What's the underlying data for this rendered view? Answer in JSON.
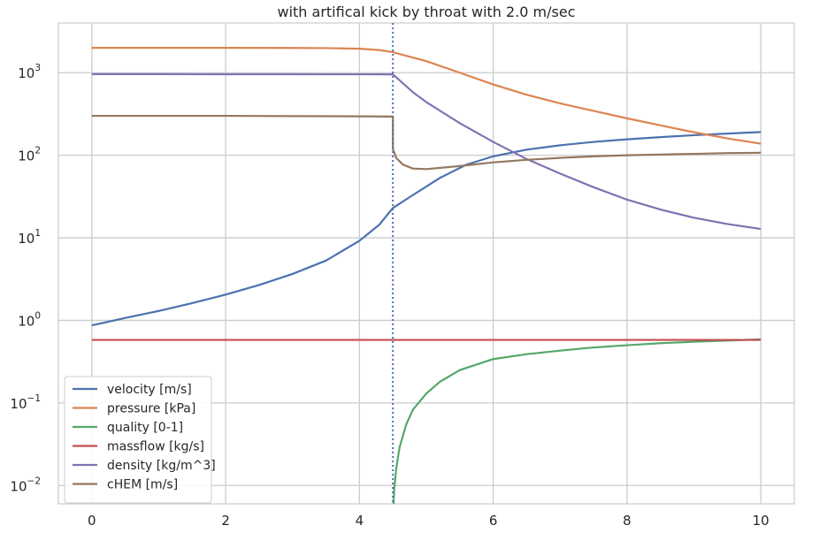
{
  "chart_data": {
    "type": "line",
    "title": "with artifical kick by throat with 2.0 m/sec",
    "xlabel": "",
    "ylabel": "",
    "xlim": [
      -0.5,
      10.5
    ],
    "ylim": [
      0.006,
      4000
    ],
    "yscale": "log",
    "grid": true,
    "legend_position": "lower-left",
    "x_ticks": [
      0,
      2,
      4,
      6,
      8,
      10
    ],
    "x_tick_labels": [
      "0",
      "2",
      "4",
      "6",
      "8",
      "10"
    ],
    "y_ticks": [
      0.01,
      0.1,
      1,
      10,
      100,
      1000
    ],
    "y_tick_labels": [
      {
        "base": "10",
        "exp": "−2"
      },
      {
        "base": "10",
        "exp": "−1"
      },
      {
        "base": "10",
        "exp": "0"
      },
      {
        "base": "10",
        "exp": "1"
      },
      {
        "base": "10",
        "exp": "2"
      },
      {
        "base": "10",
        "exp": "3"
      }
    ],
    "vline": {
      "x": 4.5,
      "color": "#4c72b0",
      "style": "dotted"
    },
    "series": [
      {
        "name": "velocity [m/s]",
        "color": "#4c72b0",
        "points": [
          [
            0,
            0.87
          ],
          [
            0.5,
            1.07
          ],
          [
            1,
            1.3
          ],
          [
            1.5,
            1.62
          ],
          [
            2,
            2.05
          ],
          [
            2.5,
            2.68
          ],
          [
            3,
            3.65
          ],
          [
            3.5,
            5.3
          ],
          [
            4,
            9.2
          ],
          [
            4.3,
            14.5
          ],
          [
            4.5,
            23
          ],
          [
            4.8,
            33
          ],
          [
            5.2,
            53
          ],
          [
            5.6,
            77
          ],
          [
            6,
            97
          ],
          [
            6.5,
            117
          ],
          [
            7,
            132
          ],
          [
            7.5,
            145
          ],
          [
            8,
            156
          ],
          [
            8.5,
            166
          ],
          [
            9,
            175
          ],
          [
            9.5,
            183
          ],
          [
            10,
            191
          ]
        ]
      },
      {
        "name": "pressure [kPa]",
        "color": "#dd8452",
        "points": [
          [
            0,
            2000
          ],
          [
            1,
            2000
          ],
          [
            2,
            2000
          ],
          [
            3,
            1995
          ],
          [
            3.5,
            1985
          ],
          [
            4,
            1950
          ],
          [
            4.3,
            1880
          ],
          [
            4.5,
            1770
          ],
          [
            5,
            1380
          ],
          [
            5.5,
            1000
          ],
          [
            6,
            720
          ],
          [
            6.5,
            540
          ],
          [
            7,
            425
          ],
          [
            7.5,
            345
          ],
          [
            8,
            280
          ],
          [
            8.5,
            230
          ],
          [
            9,
            190
          ],
          [
            9.5,
            160
          ],
          [
            10,
            138
          ]
        ]
      },
      {
        "name": "quality [0-1]",
        "color": "#55a868",
        "points": [
          [
            4.51,
            0.006
          ],
          [
            4.52,
            0.009
          ],
          [
            4.55,
            0.016
          ],
          [
            4.6,
            0.029
          ],
          [
            4.7,
            0.055
          ],
          [
            4.8,
            0.083
          ],
          [
            5,
            0.13
          ],
          [
            5.2,
            0.18
          ],
          [
            5.5,
            0.25
          ],
          [
            6,
            0.34
          ],
          [
            6.5,
            0.39
          ],
          [
            7,
            0.43
          ],
          [
            7.5,
            0.47
          ],
          [
            8,
            0.5
          ],
          [
            8.5,
            0.53
          ],
          [
            9,
            0.55
          ],
          [
            9.5,
            0.57
          ],
          [
            10,
            0.59
          ]
        ]
      },
      {
        "name": "massflow [kg/s]",
        "color": "#c44e52",
        "points": [
          [
            0,
            0.58
          ],
          [
            10,
            0.58
          ]
        ]
      },
      {
        "name": "density [kg/m^3]",
        "color": "#8172b3",
        "points": [
          [
            0,
            960
          ],
          [
            1,
            960
          ],
          [
            2,
            958
          ],
          [
            3,
            957
          ],
          [
            4,
            956
          ],
          [
            4.5,
            955
          ],
          [
            4.8,
            580
          ],
          [
            5,
            440
          ],
          [
            5.5,
            245
          ],
          [
            6,
            145
          ],
          [
            6.5,
            90
          ],
          [
            7,
            60
          ],
          [
            7.5,
            41
          ],
          [
            8,
            29
          ],
          [
            8.5,
            22
          ],
          [
            9,
            17.5
          ],
          [
            9.5,
            14.7
          ],
          [
            10,
            12.8
          ]
        ]
      },
      {
        "name": "cHEM [m/s]",
        "color": "#937860",
        "points": [
          [
            0,
            300
          ],
          [
            1,
            300
          ],
          [
            2,
            300
          ],
          [
            3,
            298
          ],
          [
            4,
            296
          ],
          [
            4.5,
            294
          ],
          [
            4.5,
            120
          ],
          [
            4.55,
            93
          ],
          [
            4.65,
            77
          ],
          [
            4.8,
            69
          ],
          [
            5,
            68
          ],
          [
            5.5,
            74
          ],
          [
            6,
            82
          ],
          [
            6.5,
            88
          ],
          [
            7,
            93
          ],
          [
            7.5,
            97
          ],
          [
            8,
            100
          ],
          [
            8.5,
            102
          ],
          [
            9,
            104
          ],
          [
            9.5,
            106
          ],
          [
            10,
            107
          ]
        ]
      }
    ]
  }
}
